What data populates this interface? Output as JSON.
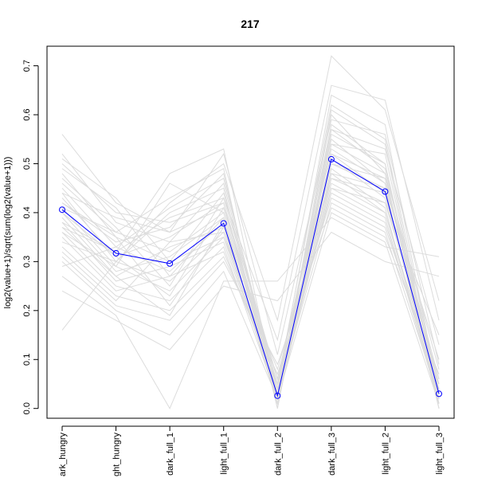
{
  "chart_data": {
    "type": "line",
    "title": "217",
    "xlabel": "",
    "ylabel": "log2(value+1)/sqrt(sum(log2(value+1)))",
    "categories": [
      "dark_hungry",
      "light_hungry",
      "dark_full_1",
      "light_full_1",
      "dark_full_2",
      "dark_full_3",
      "light_full_2",
      "light_full_3"
    ],
    "category_labels_shown": [
      "ark_hungry",
      "ght_hungry",
      "dark_full_1",
      "light_full_1",
      "dark_full_2",
      "dark_full_3",
      "light_full_2",
      "light_full_3"
    ],
    "ylim": [
      -0.02,
      0.74
    ],
    "yticks": [
      0.0,
      0.1,
      0.2,
      0.3,
      0.4,
      0.5,
      0.6,
      0.7
    ],
    "grid": false,
    "highlight_series": {
      "values": [
        0.406,
        0.317,
        0.296,
        0.378,
        0.026,
        0.509,
        0.443,
        0.03
      ],
      "color": "#0000ff",
      "marker": "open-circle"
    },
    "background_series_color": "#dcdcdc",
    "background_series": [
      [
        0.56,
        0.42,
        0.36,
        0.41,
        0.05,
        0.62,
        0.55,
        0.03
      ],
      [
        0.52,
        0.38,
        0.34,
        0.46,
        0.03,
        0.58,
        0.5,
        0.02
      ],
      [
        0.5,
        0.4,
        0.38,
        0.42,
        0.01,
        0.6,
        0.48,
        0.0
      ],
      [
        0.48,
        0.35,
        0.3,
        0.44,
        0.06,
        0.55,
        0.46,
        0.05
      ],
      [
        0.46,
        0.36,
        0.32,
        0.4,
        0.04,
        0.52,
        0.44,
        0.02
      ],
      [
        0.45,
        0.33,
        0.28,
        0.38,
        0.02,
        0.5,
        0.47,
        0.01
      ],
      [
        0.44,
        0.3,
        0.26,
        0.36,
        0.03,
        0.48,
        0.45,
        0.0
      ],
      [
        0.43,
        0.31,
        0.35,
        0.42,
        0.05,
        0.57,
        0.49,
        0.04
      ],
      [
        0.42,
        0.34,
        0.37,
        0.48,
        0.02,
        0.54,
        0.52,
        0.02
      ],
      [
        0.41,
        0.29,
        0.24,
        0.35,
        0.08,
        0.47,
        0.42,
        0.06
      ],
      [
        0.4,
        0.28,
        0.31,
        0.39,
        0.04,
        0.51,
        0.43,
        0.03
      ],
      [
        0.39,
        0.27,
        0.33,
        0.37,
        0.01,
        0.49,
        0.41,
        0.01
      ],
      [
        0.38,
        0.26,
        0.29,
        0.34,
        0.03,
        0.46,
        0.4,
        0.02
      ],
      [
        0.37,
        0.32,
        0.39,
        0.43,
        0.06,
        0.53,
        0.46,
        0.04
      ],
      [
        0.36,
        0.25,
        0.22,
        0.33,
        0.02,
        0.45,
        0.39,
        0.01
      ],
      [
        0.35,
        0.24,
        0.27,
        0.32,
        0.05,
        0.44,
        0.38,
        0.03
      ],
      [
        0.34,
        0.3,
        0.4,
        0.45,
        0.0,
        0.56,
        0.5,
        0.0
      ],
      [
        0.33,
        0.23,
        0.2,
        0.31,
        0.07,
        0.43,
        0.37,
        0.05
      ],
      [
        0.32,
        0.22,
        0.34,
        0.36,
        0.03,
        0.42,
        0.36,
        0.02
      ],
      [
        0.31,
        0.21,
        0.18,
        0.3,
        0.09,
        0.41,
        0.35,
        0.07
      ],
      [
        0.3,
        0.2,
        0.15,
        0.28,
        0.02,
        0.4,
        0.34,
        0.01
      ],
      [
        0.29,
        0.33,
        0.41,
        0.47,
        0.04,
        0.64,
        0.58,
        0.03
      ],
      [
        0.27,
        0.19,
        0.0,
        0.26,
        0.26,
        0.39,
        0.33,
        0.31
      ],
      [
        0.24,
        0.18,
        0.12,
        0.25,
        0.22,
        0.36,
        0.3,
        0.27
      ],
      [
        0.16,
        0.3,
        0.42,
        0.5,
        0.18,
        0.72,
        0.61,
        0.22
      ],
      [
        0.47,
        0.37,
        0.25,
        0.43,
        0.14,
        0.66,
        0.63,
        0.18
      ],
      [
        0.44,
        0.39,
        0.36,
        0.52,
        0.11,
        0.59,
        0.56,
        0.09
      ],
      [
        0.41,
        0.36,
        0.43,
        0.49,
        0.0,
        0.57,
        0.53,
        0.13
      ],
      [
        0.38,
        0.32,
        0.48,
        0.53,
        0.02,
        0.61,
        0.54,
        0.01
      ],
      [
        0.36,
        0.29,
        0.46,
        0.4,
        0.05,
        0.5,
        0.45,
        0.1
      ],
      [
        0.49,
        0.41,
        0.27,
        0.39,
        0.01,
        0.47,
        0.44,
        0.02
      ],
      [
        0.51,
        0.43,
        0.3,
        0.35,
        0.03,
        0.45,
        0.42,
        0.15
      ],
      [
        0.42,
        0.35,
        0.21,
        0.37,
        0.04,
        0.52,
        0.47,
        0.06
      ],
      [
        0.4,
        0.31,
        0.23,
        0.41,
        0.06,
        0.54,
        0.48,
        0.08
      ],
      [
        0.37,
        0.27,
        0.19,
        0.38,
        0.02,
        0.48,
        0.4,
        0.04
      ]
    ]
  }
}
